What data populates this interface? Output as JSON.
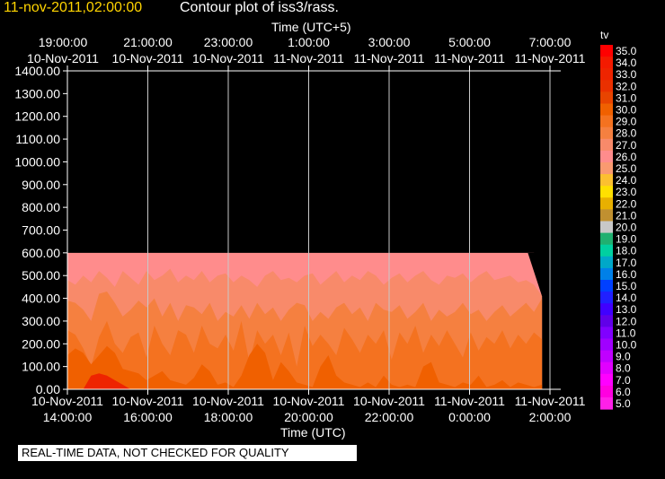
{
  "header": {
    "datetime": "11-nov-2011,02:00:00",
    "title": "Contour plot of iss3/rass."
  },
  "note": "REAL-TIME DATA, NOT CHECKED FOR QUALITY",
  "chart_data": {
    "type": "heatmap",
    "title": "Contour plot of iss3/rass.",
    "top_axis_label": "Time (UTC+5)",
    "bottom_axis_label": "Time (UTC)",
    "ylim": [
      0,
      1400
    ],
    "y_ticks": [
      "0.00",
      "100.00",
      "200.00",
      "300.00",
      "400.00",
      "500.00",
      "600.00",
      "700.00",
      "800.00",
      "900.00",
      "1000.00",
      "1100.00",
      "1200.00",
      "1300.00",
      "1400.00"
    ],
    "x_hours_utc": [
      14,
      16,
      18,
      20,
      22,
      24,
      26
    ],
    "bottom_ticks": [
      {
        "date": "10-Nov-2011",
        "time": "14:00:00"
      },
      {
        "date": "10-Nov-2011",
        "time": "16:00:00"
      },
      {
        "date": "10-Nov-2011",
        "time": "18:00:00"
      },
      {
        "date": "10-Nov-2011",
        "time": "20:00:00"
      },
      {
        "date": "10-Nov-2011",
        "time": "22:00:00"
      },
      {
        "date": "11-Nov-2011",
        "time": "0:00:00"
      },
      {
        "date": "11-Nov-2011",
        "time": "2:00:00"
      }
    ],
    "top_ticks": [
      {
        "time": "19:00:00",
        "date": "10-Nov-2011"
      },
      {
        "time": "21:00:00",
        "date": "10-Nov-2011"
      },
      {
        "time": "23:00:00",
        "date": "10-Nov-2011"
      },
      {
        "time": "1:00:00",
        "date": "11-Nov-2011"
      },
      {
        "time": "3:00:00",
        "date": "11-Nov-2011"
      },
      {
        "time": "5:00:00",
        "date": "11-Nov-2011"
      },
      {
        "time": "7:00:00",
        "date": "11-Nov-2011"
      }
    ],
    "data_extent": {
      "x_start_hour": 14,
      "x_end_hour": 25.8,
      "y_top": 600
    },
    "grid": true,
    "legend": {
      "label": "tv",
      "levels": [
        "35.0",
        "34.0",
        "33.0",
        "32.0",
        "31.0",
        "30.0",
        "29.0",
        "28.0",
        "27.0",
        "26.0",
        "25.0",
        "24.0",
        "23.0",
        "22.0",
        "21.0",
        "20.0",
        "19.0",
        "18.0",
        "17.0",
        "16.0",
        "15.0",
        "14.0",
        "13.0",
        "12.0",
        "11.0",
        "10.0",
        "9.0",
        "8.0",
        "7.0",
        "6.0",
        "5.0"
      ],
      "colors": [
        "#ff0000",
        "#f41a00",
        "#ee2400",
        "#ea3000",
        "#e84400",
        "#f06000",
        "#f47220",
        "#f58040",
        "#f88a6a",
        "#ff8c8c",
        "#fa9a70",
        "#fcc030",
        "#ffe000",
        "#e8b000",
        "#c09030",
        "#c8c8c8",
        "#20b070",
        "#00d0a0",
        "#00a8c8",
        "#0080e8",
        "#0040ff",
        "#2020ff",
        "#4000ff",
        "#6000e8",
        "#8000ff",
        "#a000ff",
        "#c000ff",
        "#e000ff",
        "#ff00ff",
        "#ff00e0",
        "#ff20e8"
      ]
    },
    "bands": [
      {
        "color": "#ff8c8c",
        "top": [
          600,
          600,
          600,
          600,
          600,
          600,
          600,
          600,
          600,
          600,
          600,
          600,
          600,
          600,
          600,
          600,
          600,
          600,
          600,
          600,
          600,
          600,
          600,
          600,
          600,
          600,
          600,
          600,
          600,
          600,
          600,
          600,
          600,
          600,
          600,
          600,
          600,
          600,
          600,
          600,
          600,
          600,
          600,
          600,
          600,
          600,
          600,
          600,
          600,
          600,
          600,
          600,
          600,
          600,
          600,
          600,
          600,
          600,
          600,
          600,
          415
        ]
      },
      {
        "color": "#f88a6a",
        "top": [
          480,
          460,
          500,
          470,
          520,
          490,
          450,
          520,
          490,
          460,
          520,
          480,
          500,
          530,
          470,
          500,
          480,
          520,
          470,
          500,
          510,
          470,
          500,
          480,
          450,
          500,
          520,
          480,
          490,
          470,
          500,
          510,
          460,
          490,
          520,
          470,
          500,
          480,
          520,
          500,
          460,
          490,
          510,
          470,
          500,
          520,
          480,
          460,
          500,
          490,
          510,
          470,
          500,
          520,
          480,
          490,
          500,
          470,
          480,
          460,
          410
        ]
      },
      {
        "color": "#f58040",
        "top": [
          390,
          380,
          350,
          300,
          420,
          430,
          380,
          320,
          350,
          390,
          360,
          400,
          320,
          380,
          300,
          370,
          360,
          330,
          380,
          300,
          340,
          320,
          370,
          310,
          380,
          330,
          360,
          300,
          350,
          380,
          370,
          300,
          340,
          310,
          360,
          380,
          330,
          360,
          300,
          380,
          350,
          340,
          370,
          310,
          340,
          380,
          300,
          350,
          320,
          340,
          380,
          330,
          350,
          300,
          340,
          370,
          320,
          350,
          380,
          340,
          400
        ]
      },
      {
        "color": "#f47220",
        "top": [
          260,
          240,
          180,
          100,
          230,
          300,
          200,
          160,
          230,
          250,
          140,
          280,
          200,
          150,
          260,
          240,
          160,
          280,
          200,
          180,
          240,
          170,
          300,
          120,
          260,
          200,
          240,
          150,
          250,
          100,
          280,
          190,
          240,
          200,
          150,
          270,
          220,
          160,
          240,
          200,
          260,
          130,
          250,
          200,
          280,
          160,
          240,
          190,
          260,
          200,
          140,
          250,
          170,
          230,
          200,
          260,
          180,
          240,
          200,
          250,
          220
        ]
      },
      {
        "color": "#f06000",
        "top": [
          150,
          180,
          160,
          110,
          150,
          190,
          160,
          90,
          80,
          70,
          40,
          60,
          80,
          40,
          30,
          20,
          50,
          110,
          80,
          20,
          30,
          10,
          60,
          150,
          200,
          160,
          40,
          120,
          80,
          30,
          20,
          10,
          100,
          150,
          60,
          30,
          20,
          10,
          30,
          10,
          60,
          20,
          10,
          20,
          10,
          100,
          120,
          30,
          20,
          10,
          30,
          20,
          60,
          10,
          20,
          40,
          10,
          30,
          20,
          10,
          20
        ]
      },
      {
        "color": "#ee2400",
        "top": [
          0,
          0,
          0,
          60,
          70,
          60,
          40,
          20,
          0,
          0,
          0,
          0,
          0,
          0,
          0,
          0,
          0,
          0,
          0,
          0,
          0,
          0,
          0,
          0,
          0,
          0,
          0,
          0,
          0,
          0,
          0,
          0,
          0,
          0,
          0,
          0,
          0,
          0,
          0,
          0,
          0,
          0,
          0,
          0,
          0,
          0,
          0,
          0,
          0,
          0,
          0,
          0,
          0,
          0,
          0,
          0,
          0,
          0,
          0,
          0,
          0
        ]
      }
    ]
  }
}
